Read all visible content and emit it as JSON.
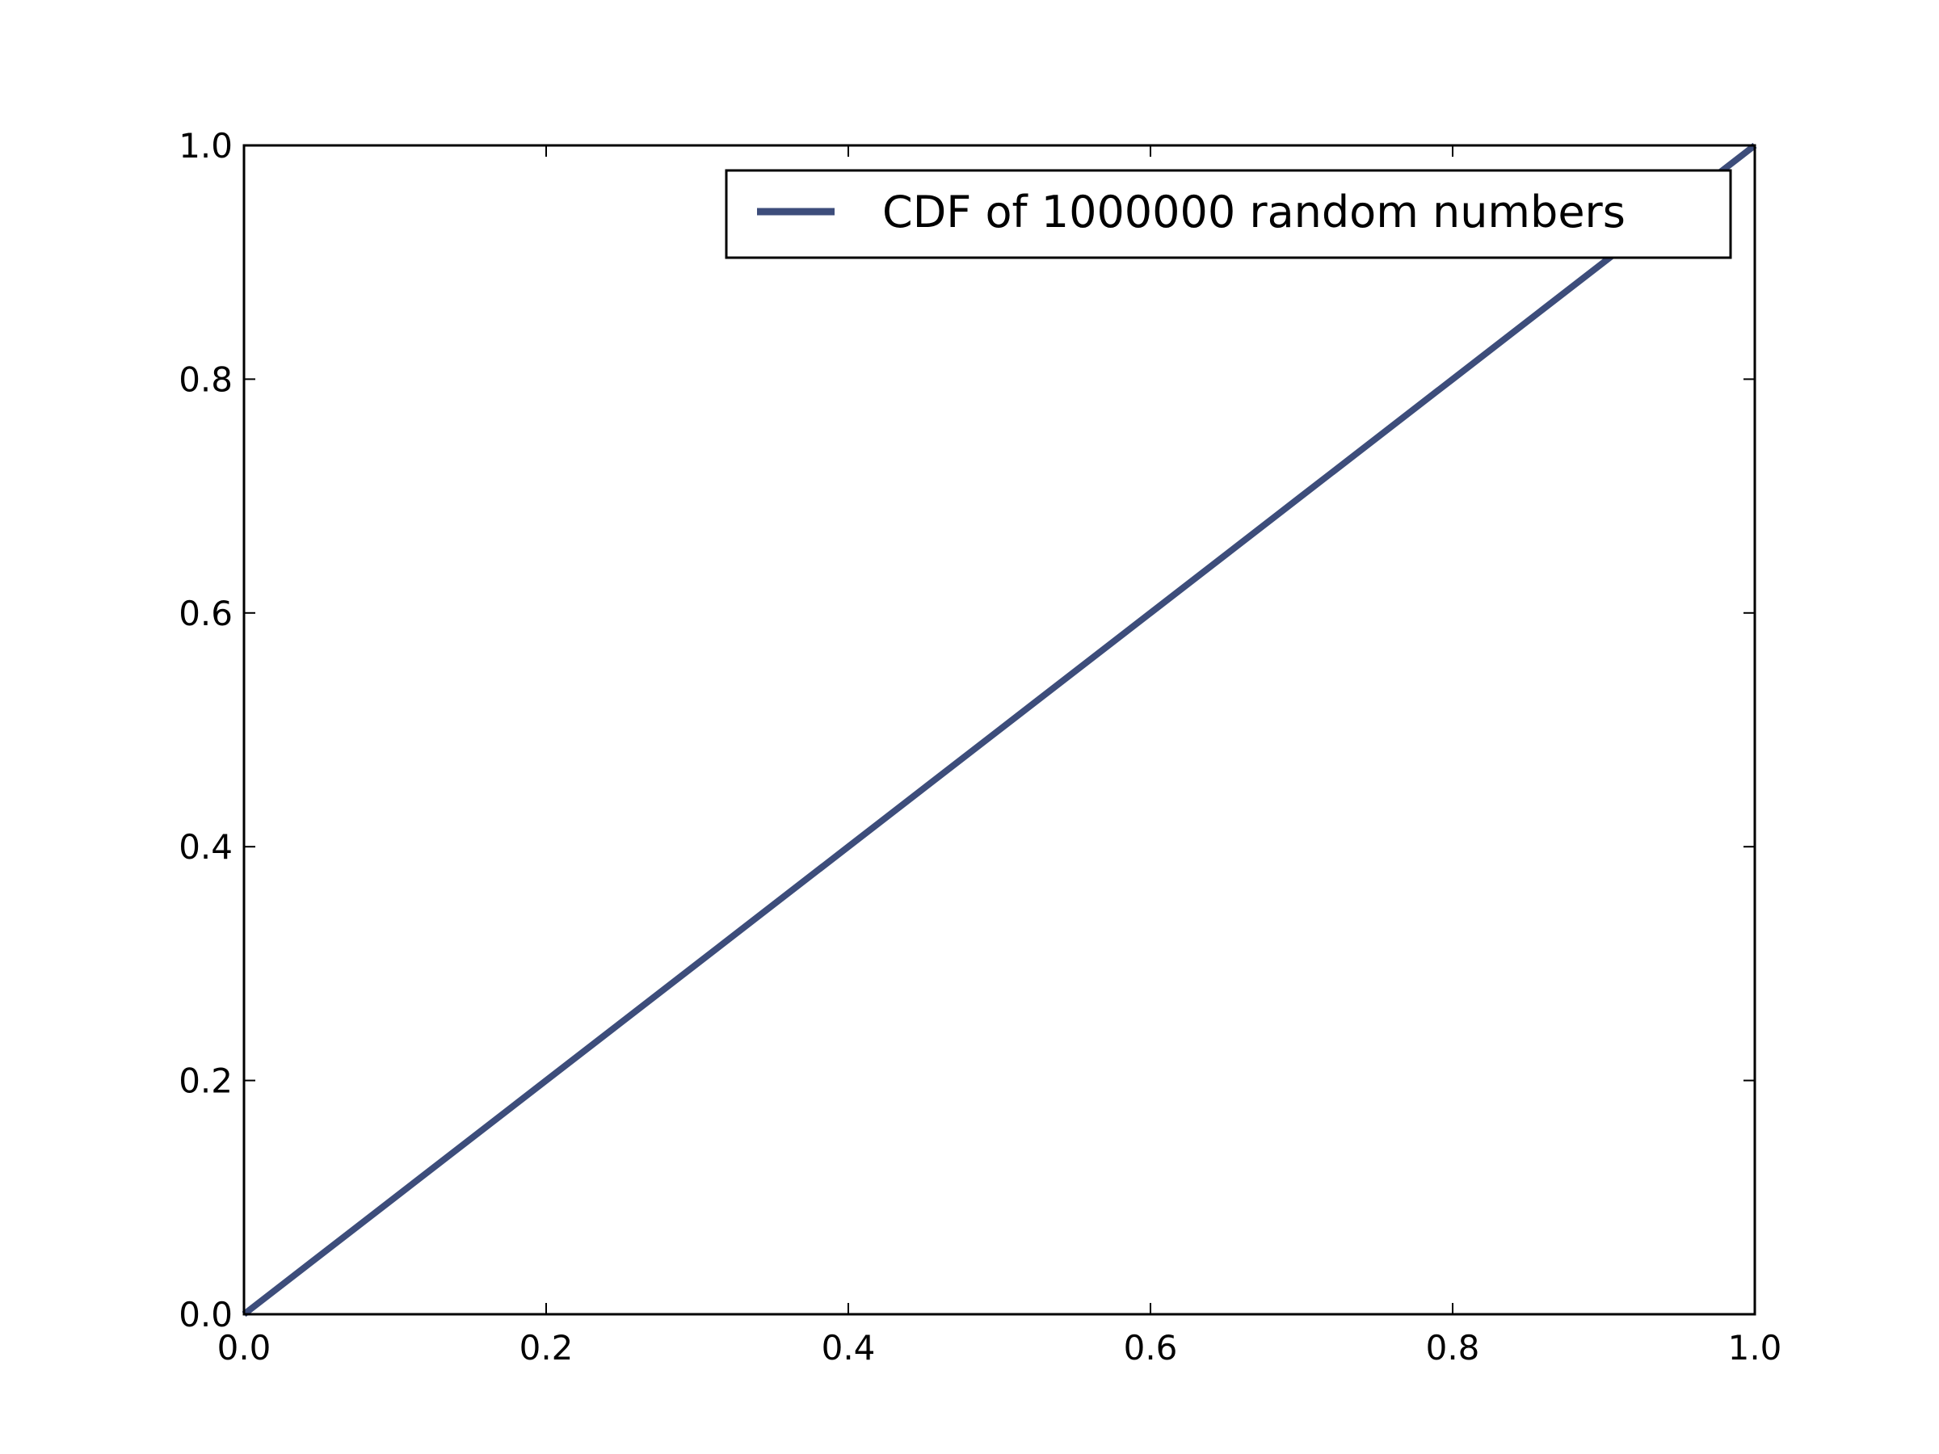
{
  "chart_data": {
    "type": "line",
    "title": "",
    "xlabel": "",
    "ylabel": "",
    "xlim": [
      0.0,
      1.0
    ],
    "ylim": [
      0.0,
      1.0
    ],
    "xticks": [
      "0.0",
      "0.2",
      "0.4",
      "0.6",
      "0.8",
      "1.0"
    ],
    "yticks": [
      "0.0",
      "0.2",
      "0.4",
      "0.6",
      "0.8",
      "1.0"
    ],
    "grid": false,
    "legend_position": "top-right",
    "series": [
      {
        "name": "CDF of 1000000 random numbers",
        "color": "#3d4d7b",
        "x": [
          0.0,
          0.1,
          0.2,
          0.3,
          0.4,
          0.5,
          0.6,
          0.7,
          0.8,
          0.9,
          1.0
        ],
        "y": [
          0.0,
          0.1,
          0.2,
          0.3,
          0.4,
          0.5,
          0.6,
          0.7,
          0.8,
          0.9,
          1.0
        ]
      }
    ]
  }
}
